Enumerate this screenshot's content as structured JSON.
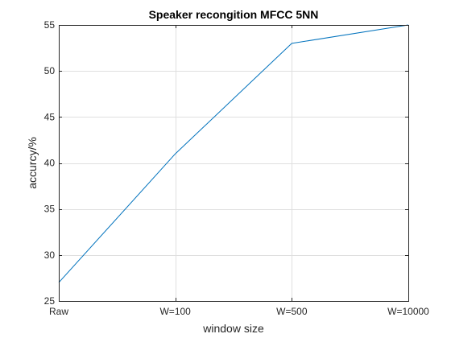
{
  "chart_data": {
    "type": "line",
    "title": "Speaker recongition MFCC 5NN",
    "xlabel": "window size",
    "ylabel": "accurcy/%",
    "categories": [
      "Raw",
      "W=100",
      "W=500",
      "W=10000"
    ],
    "series": [
      {
        "values": [
          27,
          41,
          53,
          55
        ],
        "color": "#0072BD"
      }
    ],
    "ylim": [
      25,
      55
    ],
    "yticks": [
      25,
      30,
      35,
      40,
      45,
      50,
      55
    ],
    "grid": true,
    "legend": "none",
    "colors": {
      "line": "#0072BD",
      "grid": "#dfdfdf",
      "axis": "#262626"
    }
  }
}
